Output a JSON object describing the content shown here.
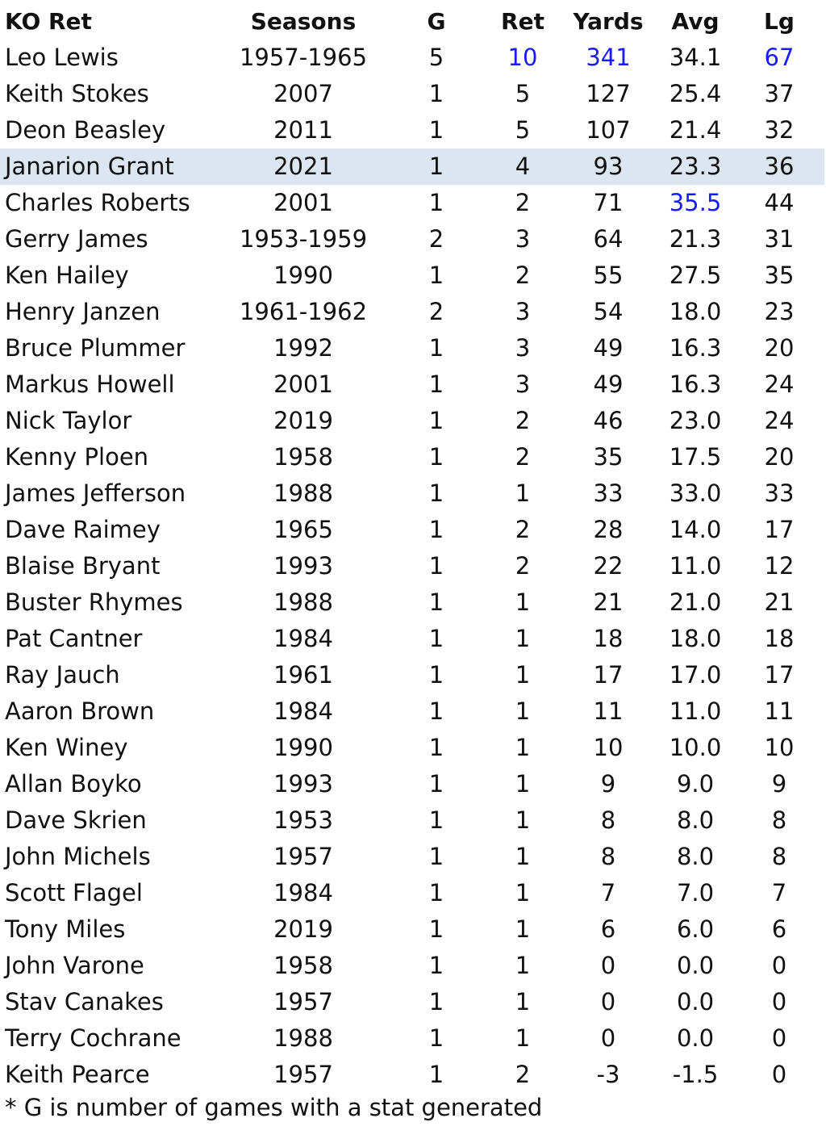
{
  "table": {
    "headers": [
      "KO Ret",
      "Seasons",
      "G",
      "Ret",
      "Yards",
      "Avg",
      "Lg"
    ],
    "rows": [
      {
        "name": "Leo Lewis",
        "seasons": "1957-1965",
        "g": "5",
        "ret": "10",
        "yards": "341",
        "avg": "34.1",
        "lg": "67",
        "blue": [
          "ret",
          "yards",
          "lg"
        ]
      },
      {
        "name": "Keith Stokes",
        "seasons": "2007",
        "g": "1",
        "ret": "5",
        "yards": "127",
        "avg": "25.4",
        "lg": "37"
      },
      {
        "name": "Deon Beasley",
        "seasons": "2011",
        "g": "1",
        "ret": "5",
        "yards": "107",
        "avg": "21.4",
        "lg": "32"
      },
      {
        "name": "Janarion Grant",
        "seasons": "2021",
        "g": "1",
        "ret": "4",
        "yards": "93",
        "avg": "23.3",
        "lg": "36",
        "highlight": true
      },
      {
        "name": "Charles Roberts",
        "seasons": "2001",
        "g": "1",
        "ret": "2",
        "yards": "71",
        "avg": "35.5",
        "lg": "44",
        "blue": [
          "avg"
        ]
      },
      {
        "name": "Gerry James",
        "seasons": "1953-1959",
        "g": "2",
        "ret": "3",
        "yards": "64",
        "avg": "21.3",
        "lg": "31"
      },
      {
        "name": "Ken Hailey",
        "seasons": "1990",
        "g": "1",
        "ret": "2",
        "yards": "55",
        "avg": "27.5",
        "lg": "35"
      },
      {
        "name": "Henry Janzen",
        "seasons": "1961-1962",
        "g": "2",
        "ret": "3",
        "yards": "54",
        "avg": "18.0",
        "lg": "23"
      },
      {
        "name": "Bruce Plummer",
        "seasons": "1992",
        "g": "1",
        "ret": "3",
        "yards": "49",
        "avg": "16.3",
        "lg": "20"
      },
      {
        "name": "Markus Howell",
        "seasons": "2001",
        "g": "1",
        "ret": "3",
        "yards": "49",
        "avg": "16.3",
        "lg": "24"
      },
      {
        "name": "Nick Taylor",
        "seasons": "2019",
        "g": "1",
        "ret": "2",
        "yards": "46",
        "avg": "23.0",
        "lg": "24"
      },
      {
        "name": "Kenny Ploen",
        "seasons": "1958",
        "g": "1",
        "ret": "2",
        "yards": "35",
        "avg": "17.5",
        "lg": "20"
      },
      {
        "name": "James Jefferson",
        "seasons": "1988",
        "g": "1",
        "ret": "1",
        "yards": "33",
        "avg": "33.0",
        "lg": "33"
      },
      {
        "name": "Dave Raimey",
        "seasons": "1965",
        "g": "1",
        "ret": "2",
        "yards": "28",
        "avg": "14.0",
        "lg": "17"
      },
      {
        "name": "Blaise Bryant",
        "seasons": "1993",
        "g": "1",
        "ret": "2",
        "yards": "22",
        "avg": "11.0",
        "lg": "12"
      },
      {
        "name": "Buster Rhymes",
        "seasons": "1988",
        "g": "1",
        "ret": "1",
        "yards": "21",
        "avg": "21.0",
        "lg": "21"
      },
      {
        "name": "Pat Cantner",
        "seasons": "1984",
        "g": "1",
        "ret": "1",
        "yards": "18",
        "avg": "18.0",
        "lg": "18"
      },
      {
        "name": "Ray Jauch",
        "seasons": "1961",
        "g": "1",
        "ret": "1",
        "yards": "17",
        "avg": "17.0",
        "lg": "17"
      },
      {
        "name": "Aaron Brown",
        "seasons": "1984",
        "g": "1",
        "ret": "1",
        "yards": "11",
        "avg": "11.0",
        "lg": "11"
      },
      {
        "name": "Ken Winey",
        "seasons": "1990",
        "g": "1",
        "ret": "1",
        "yards": "10",
        "avg": "10.0",
        "lg": "10"
      },
      {
        "name": "Allan Boyko",
        "seasons": "1993",
        "g": "1",
        "ret": "1",
        "yards": "9",
        "avg": "9.0",
        "lg": "9"
      },
      {
        "name": "Dave Skrien",
        "seasons": "1953",
        "g": "1",
        "ret": "1",
        "yards": "8",
        "avg": "8.0",
        "lg": "8"
      },
      {
        "name": "John Michels",
        "seasons": "1957",
        "g": "1",
        "ret": "1",
        "yards": "8",
        "avg": "8.0",
        "lg": "8"
      },
      {
        "name": "Scott Flagel",
        "seasons": "1984",
        "g": "1",
        "ret": "1",
        "yards": "7",
        "avg": "7.0",
        "lg": "7"
      },
      {
        "name": "Tony Miles",
        "seasons": "2019",
        "g": "1",
        "ret": "1",
        "yards": "6",
        "avg": "6.0",
        "lg": "6"
      },
      {
        "name": "John Varone",
        "seasons": "1958",
        "g": "1",
        "ret": "1",
        "yards": "0",
        "avg": "0.0",
        "lg": "0"
      },
      {
        "name": "Stav Canakes",
        "seasons": "1957",
        "g": "1",
        "ret": "1",
        "yards": "0",
        "avg": "0.0",
        "lg": "0"
      },
      {
        "name": "Terry Cochrane",
        "seasons": "1988",
        "g": "1",
        "ret": "1",
        "yards": "0",
        "avg": "0.0",
        "lg": "0"
      },
      {
        "name": "Keith Pearce",
        "seasons": "1957",
        "g": "1",
        "ret": "2",
        "yards": "-3",
        "avg": "-1.5",
        "lg": "0"
      }
    ]
  },
  "footnote": "* G is number of games with a stat generated",
  "colors": {
    "highlight_row": "#dce6f1",
    "record_blue": "#1a1aff"
  }
}
